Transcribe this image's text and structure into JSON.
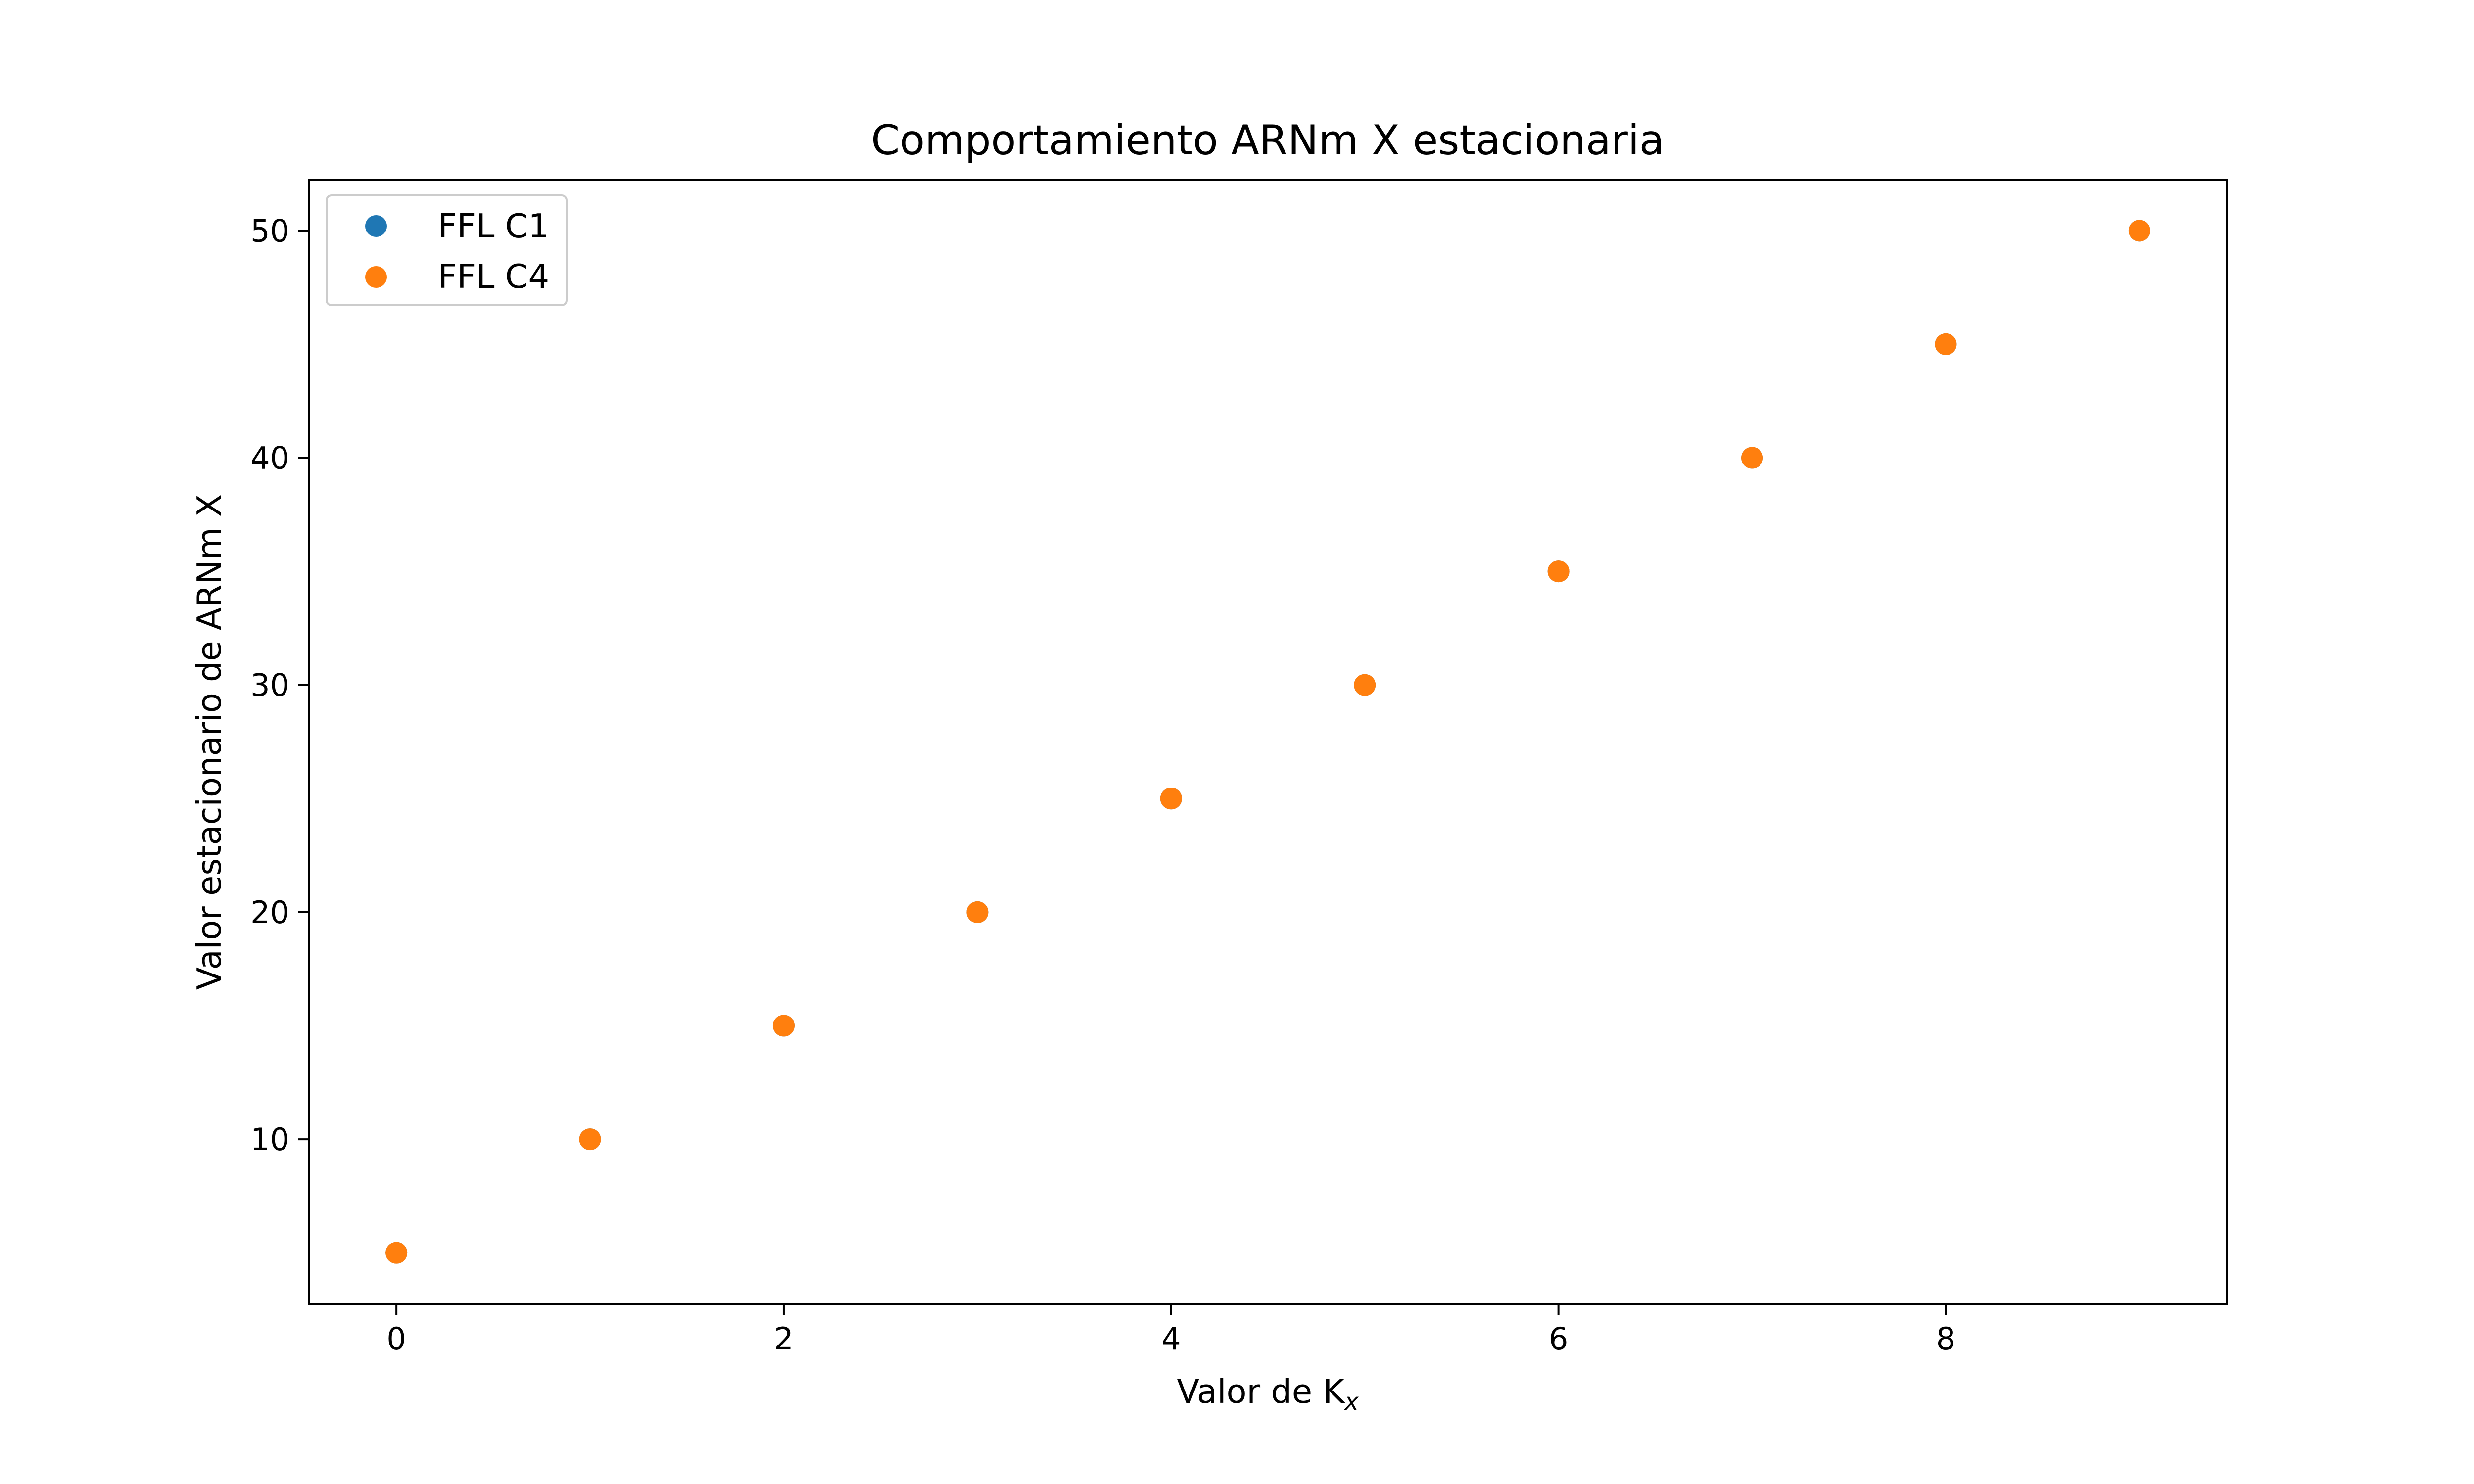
{
  "chart_data": {
    "type": "scatter",
    "title": "Comportamiento ARNm X estacionaria",
    "xlabel": "Valor de K",
    "xlabel_subscript": "x",
    "ylabel": "Valor estacionario de ARNm X",
    "xlim": [
      -0.45,
      9.45
    ],
    "ylim": [
      2.75,
      52.25
    ],
    "xticks": [
      0,
      2,
      4,
      6,
      8
    ],
    "yticks": [
      10,
      20,
      30,
      40,
      50
    ],
    "grid": false,
    "legend_position": "top-left",
    "series": [
      {
        "name": "FFL C1",
        "color": "#1f77b4",
        "x": [
          0,
          1,
          2,
          3,
          4,
          5,
          6,
          7,
          8,
          9
        ],
        "y": [
          5,
          10,
          15,
          20,
          25,
          30,
          35,
          40,
          45,
          50
        ]
      },
      {
        "name": "FFL C4",
        "color": "#ff7f0e",
        "x": [
          0,
          1,
          2,
          3,
          4,
          5,
          6,
          7,
          8,
          9
        ],
        "y": [
          5,
          10,
          15,
          20,
          25,
          30,
          35,
          40,
          45,
          50
        ]
      }
    ]
  }
}
